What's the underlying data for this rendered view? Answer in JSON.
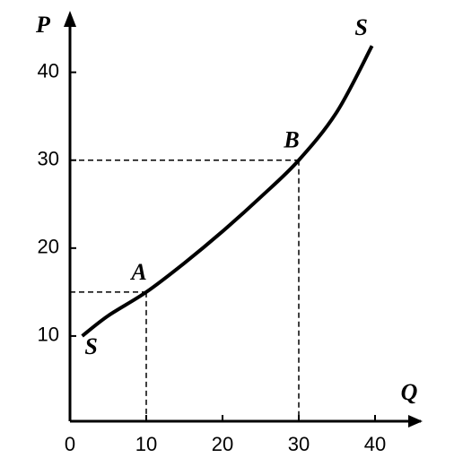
{
  "chart_data": {
    "type": "line",
    "x_label": "Q",
    "y_label": "P",
    "xlim": [
      0,
      46
    ],
    "ylim": [
      0,
      47
    ],
    "xticks": [
      0,
      10,
      20,
      30,
      40
    ],
    "yticks": [
      10,
      20,
      30,
      40
    ],
    "series": [
      {
        "name": "S",
        "color": "#000000",
        "x": [
          1.6,
          5,
          10,
          15,
          20,
          25,
          30,
          35,
          39.6
        ],
        "values": [
          10,
          12.3,
          15,
          18.3,
          21.9,
          25.8,
          30,
          35.5,
          43
        ]
      }
    ],
    "points": [
      {
        "label": "A",
        "x": 10,
        "y": 15
      },
      {
        "label": "B",
        "x": 30,
        "y": 30
      }
    ]
  }
}
